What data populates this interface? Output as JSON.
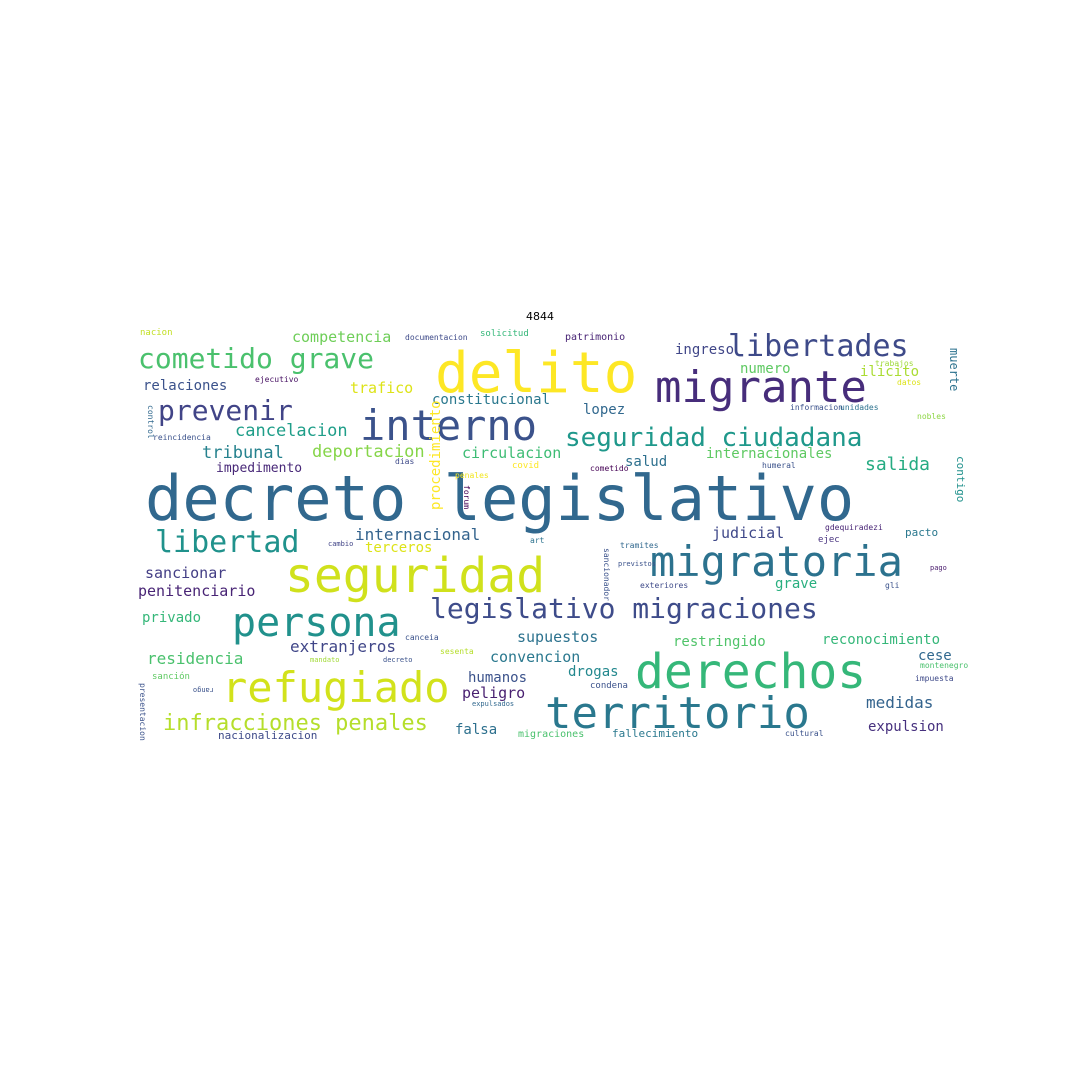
{
  "title": "4844",
  "words": [
    {
      "text": "decreto legislativo",
      "color": "#31688e"
    },
    {
      "text": "delito",
      "color": "#fde725"
    },
    {
      "text": "migrante",
      "color": "#472d7b"
    },
    {
      "text": "interno",
      "color": "#3b528b"
    },
    {
      "text": "seguridad",
      "color": "#d0e11c"
    },
    {
      "text": "migratoria",
      "color": "#2c728e"
    },
    {
      "text": "derechos",
      "color": "#35b779"
    },
    {
      "text": "territorio",
      "color": "#2a788e"
    },
    {
      "text": "refugiado",
      "color": "#d2e21b"
    },
    {
      "text": "persona",
      "color": "#21918c"
    },
    {
      "text": "libertades",
      "color": "#3e4a89"
    },
    {
      "text": "cometido grave",
      "color": "#4ac16d"
    },
    {
      "text": "prevenir",
      "color": "#414487"
    },
    {
      "text": "seguridad ciudadana",
      "color": "#1f988b"
    },
    {
      "text": "legislativo migraciones",
      "color": "#3e4c8a"
    },
    {
      "text": "libertad",
      "color": "#20928c"
    },
    {
      "text": "infracciones penales",
      "color": "#b5de2b"
    },
    {
      "text": "competencia",
      "color": "#6ece58"
    },
    {
      "text": "relaciones",
      "color": "#3b528b"
    },
    {
      "text": "trafico",
      "color": "#dde318"
    },
    {
      "text": "constitucional",
      "color": "#2a788e"
    },
    {
      "text": "ingreso",
      "color": "#404688"
    },
    {
      "text": "cancelacion",
      "color": "#1f9e89"
    },
    {
      "text": "lopez",
      "color": "#31688e"
    },
    {
      "text": "tribunal",
      "color": "#26828e"
    },
    {
      "text": "deportacion",
      "color": "#86d549"
    },
    {
      "text": "circulacion",
      "color": "#3dbc74"
    },
    {
      "text": "salida",
      "color": "#25ab82"
    },
    {
      "text": "impedimento",
      "color": "#482878"
    },
    {
      "text": "salud",
      "color": "#2d708e"
    },
    {
      "text": "internacionales",
      "color": "#5ec962"
    },
    {
      "text": "judicial",
      "color": "#3f4889"
    },
    {
      "text": "internacional",
      "color": "#33638d"
    },
    {
      "text": "terceros",
      "color": "#dde318"
    },
    {
      "text": "sancionar",
      "color": "#433e85"
    },
    {
      "text": "penitenciario",
      "color": "#482475"
    },
    {
      "text": "grave",
      "color": "#29af7f"
    },
    {
      "text": "privado",
      "color": "#35b779"
    },
    {
      "text": "extranjeros",
      "color": "#404688"
    },
    {
      "text": "supuestos",
      "color": "#2c728e"
    },
    {
      "text": "restringido",
      "color": "#50c46a"
    },
    {
      "text": "reconocimiento",
      "color": "#35b779"
    },
    {
      "text": "residencia",
      "color": "#4ac16d"
    },
    {
      "text": "convencion",
      "color": "#2a788e"
    },
    {
      "text": "drogas",
      "color": "#23888e"
    },
    {
      "text": "cese",
      "color": "#31688e"
    },
    {
      "text": "humanos",
      "color": "#3b528b"
    },
    {
      "text": "peligro",
      "color": "#481f70"
    },
    {
      "text": "medidas",
      "color": "#33638d"
    },
    {
      "text": "falsa",
      "color": "#2d708e"
    },
    {
      "text": "expulsion",
      "color": "#46307e"
    },
    {
      "text": "nacionalizacion",
      "color": "#3e4a89"
    },
    {
      "text": "migraciones",
      "color": "#4ac16d"
    },
    {
      "text": "fallecimiento",
      "color": "#2a788e"
    },
    {
      "text": "numero",
      "color": "#5ec962"
    },
    {
      "text": "ilicito",
      "color": "#aadc32"
    },
    {
      "text": "muerte",
      "color": "#2c728e"
    },
    {
      "text": "contigo",
      "color": "#21918c"
    },
    {
      "text": "pacto",
      "color": "#2a788e"
    },
    {
      "text": "procedimiento",
      "color": "#fde725"
    },
    {
      "text": "nacion",
      "color": "#c2df23"
    },
    {
      "text": "documentacion",
      "color": "#3e4a89"
    },
    {
      "text": "solicitud",
      "color": "#35b779"
    },
    {
      "text": "patrimonio",
      "color": "#482475"
    },
    {
      "text": "ejecutivo",
      "color": "#471063"
    },
    {
      "text": "trabajos",
      "color": "#9fda3a"
    },
    {
      "text": "datos",
      "color": "#dde318"
    },
    {
      "text": "informacion",
      "color": "#3b528b"
    },
    {
      "text": "unidades",
      "color": "#2c728e"
    },
    {
      "text": "nobles",
      "color": "#8ed645"
    },
    {
      "text": "reincidencia",
      "color": "#3b528b"
    },
    {
      "text": "control",
      "color": "#31688e"
    },
    {
      "text": "dias",
      "color": "#3e4a89"
    },
    {
      "text": "penales",
      "color": "#f1e51d"
    },
    {
      "text": "covid",
      "color": "#fde725"
    },
    {
      "text": "cometido",
      "color": "#440154"
    },
    {
      "text": "humeral",
      "color": "#3b528b"
    },
    {
      "text": "gdequiradezi",
      "color": "#482475"
    },
    {
      "text": "ejec",
      "color": "#46307e"
    },
    {
      "text": "cambio",
      "color": "#414487"
    },
    {
      "text": "art",
      "color": "#2c728e"
    },
    {
      "text": "tramites",
      "color": "#31688e"
    },
    {
      "text": "sancionador",
      "color": "#3b528b"
    },
    {
      "text": "previstos",
      "color": "#3b528b"
    },
    {
      "text": "exteriores",
      "color": "#3e4a89"
    },
    {
      "text": "canceia",
      "color": "#3b528b"
    },
    {
      "text": "sesenta",
      "color": "#b5de2b"
    },
    {
      "text": "mandato",
      "color": "#a2da37"
    },
    {
      "text": "decreto",
      "color": "#3b528b"
    },
    {
      "text": "sanción",
      "color": "#5ec962"
    },
    {
      "text": "condena",
      "color": "#3b528b"
    },
    {
      "text": "montenegro",
      "color": "#4ac16d"
    },
    {
      "text": "impuesta",
      "color": "#3e4a89"
    },
    {
      "text": "presentacion",
      "color": "#3b528b"
    },
    {
      "text": "expulsados",
      "color": "#31688e"
    },
    {
      "text": "cultural",
      "color": "#3b528b"
    },
    {
      "text": "gli",
      "color": "#3b528b"
    },
    {
      "text": "forum",
      "color": "#440154"
    },
    {
      "text": "rango",
      "color": "#3b528b"
    },
    {
      "text": "pago",
      "color": "#481a6c"
    }
  ]
}
